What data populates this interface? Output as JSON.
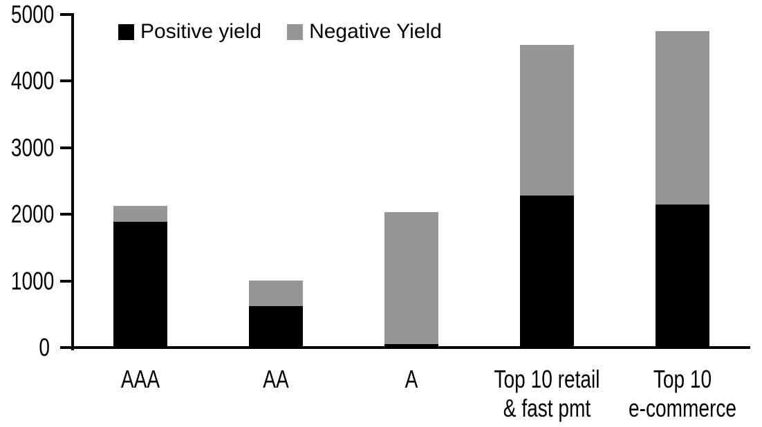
{
  "chart_data": {
    "type": "bar",
    "stacked": true,
    "categories": [
      "AAA",
      "AA",
      "A",
      "Top 10 retail & fast pmt",
      "Top 10 e-commerce"
    ],
    "category_label_lines": [
      [
        "AAA"
      ],
      [
        "AA"
      ],
      [
        "A"
      ],
      [
        "Top 10 retail",
        "& fast pmt"
      ],
      [
        "Top 10",
        "e-commerce"
      ]
    ],
    "series": [
      {
        "name": "Positive yield",
        "color": "#000000",
        "values": [
          1890,
          620,
          55,
          2285,
          2145
        ]
      },
      {
        "name": "Negative Yield",
        "color": "#969696",
        "values": [
          235,
          385,
          1975,
          2260,
          2605
        ]
      }
    ],
    "stacked_totals": [
      2125,
      1005,
      2030,
      4545,
      4750
    ],
    "ylim": [
      0,
      5000
    ],
    "ytick_interval": 1000,
    "ytick_labels": [
      "0",
      "1000",
      "2000",
      "3000",
      "4000",
      "5000"
    ],
    "legend_position": "top",
    "grid": false,
    "axis_color": "#000000",
    "background_color": "#ffffff"
  }
}
